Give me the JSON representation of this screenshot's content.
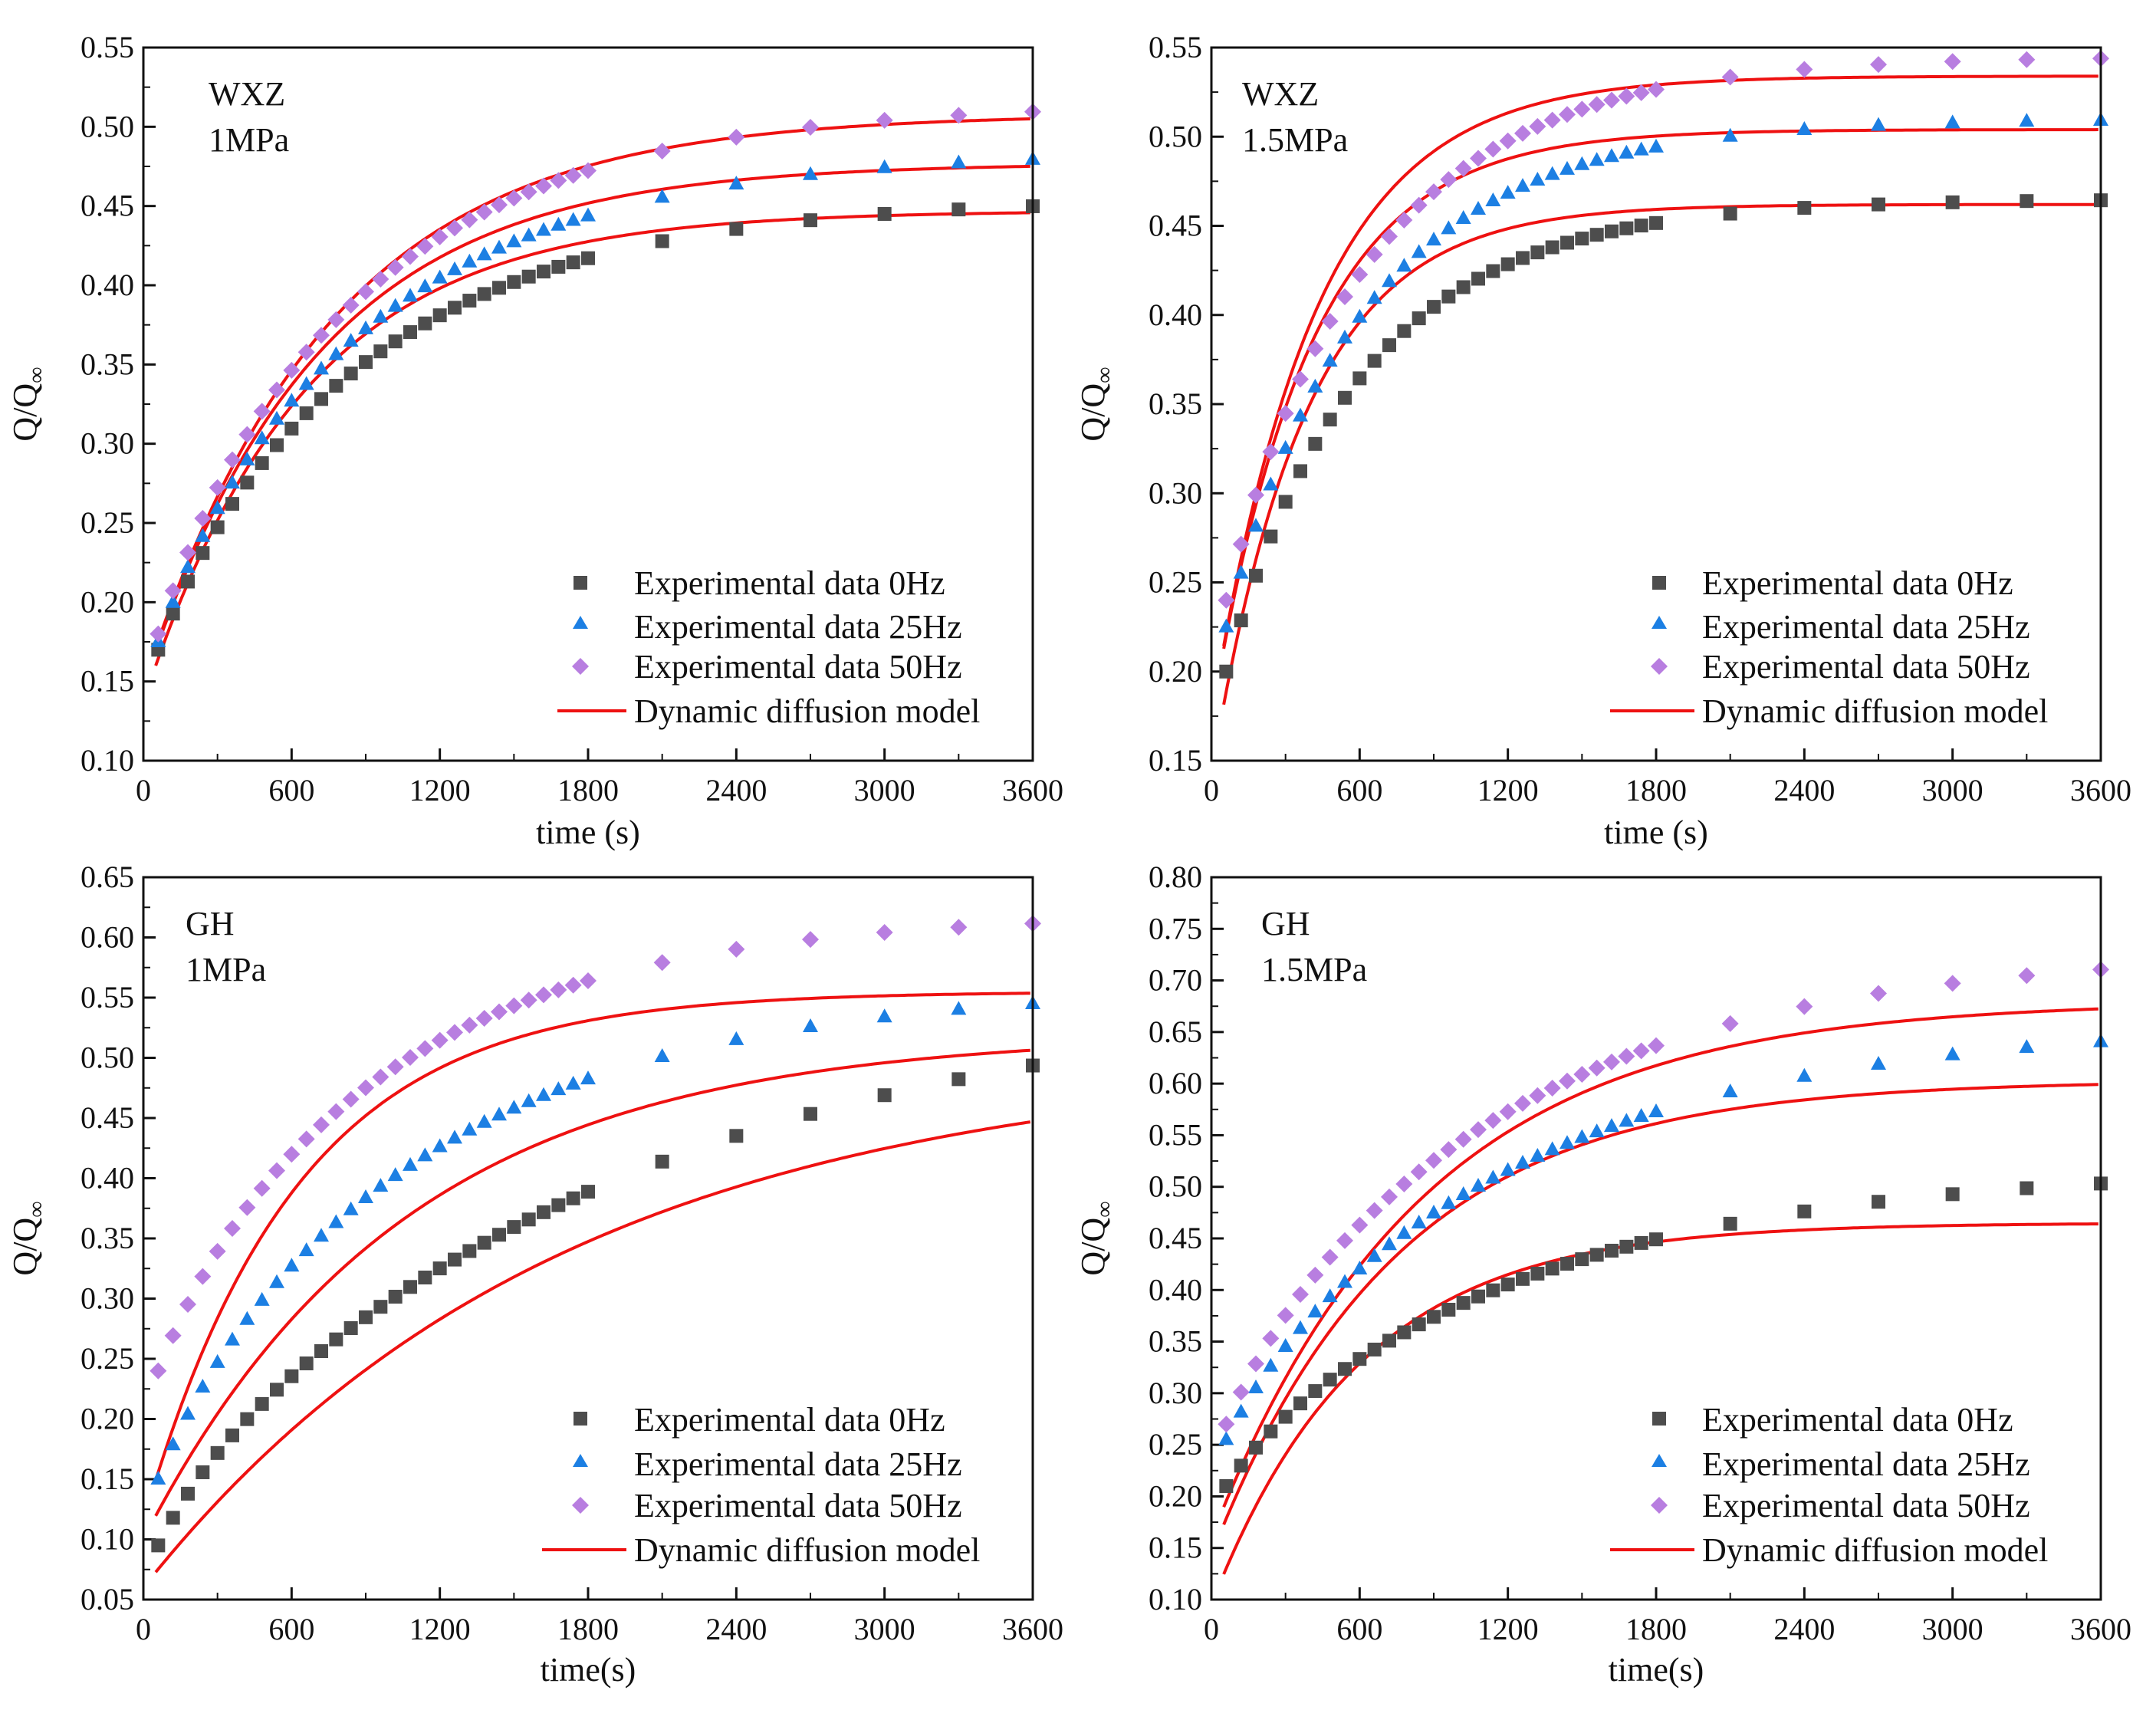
{
  "figure": {
    "panels": 4,
    "colors": {
      "exp_0hz": "#4d4d4d",
      "exp_25hz": "#1c7fe3",
      "exp_50hz": "#b87ee0",
      "model": "#ee1111"
    }
  },
  "chart_data": [
    {
      "type": "scatter",
      "sample": "WXZ",
      "pressure": "1MPa",
      "xlabel": "time (s)",
      "ylabel": "Q/Q∞",
      "xlim": [
        0,
        3600
      ],
      "ylim": [
        0.1,
        0.55
      ],
      "xticks": [
        0,
        600,
        1200,
        1800,
        2400,
        3000,
        3600
      ],
      "xtick_labels": [
        "0",
        "600",
        "1200",
        "1800",
        "2400",
        "3000",
        "3600"
      ],
      "yticks": [
        0.1,
        0.15,
        0.2,
        0.25,
        0.3,
        0.35,
        0.4,
        0.45,
        0.5,
        0.55
      ],
      "ytick_labels": [
        "0.10",
        "0.15",
        "0.20",
        "0.25",
        "0.30",
        "0.35",
        "0.40",
        "0.45",
        "0.50",
        "0.55"
      ],
      "legend": {
        "position": "bottom-right",
        "entries": [
          "Experimental data 0Hz",
          "Experimental data 25Hz",
          "Experimental data 50Hz",
          "Dynamic diffusion model"
        ]
      },
      "series": [
        {
          "name": "Experimental data 0Hz",
          "marker": "square",
          "x0": 60,
          "dx": 60,
          "n": 30,
          "extra_x": [
            2100,
            2400,
            2700,
            3000,
            3300,
            3600
          ],
          "Qmax": 0.455,
          "tau": 900,
          "y0": 0.17
        },
        {
          "name": "Experimental data 25Hz",
          "marker": "triangle",
          "x0": 60,
          "dx": 60,
          "n": 30,
          "extra_x": [
            2100,
            2400,
            2700,
            3000,
            3300,
            3600
          ],
          "Qmax": 0.485,
          "tau": 900,
          "y0": 0.175
        },
        {
          "name": "Experimental data 50Hz",
          "marker": "diamond",
          "x0": 60,
          "dx": 60,
          "n": 30,
          "extra_x": [
            2100,
            2400,
            2700,
            3000,
            3300,
            3600
          ],
          "Qmax": 0.515,
          "tau": 880,
          "y0": 0.18
        }
      ],
      "models": [
        {
          "name": "Dynamic diffusion model 0Hz",
          "A": 0.447,
          "B": 0.31,
          "tau": 650,
          "x_start": 50
        },
        {
          "name": "Dynamic diffusion model 25Hz",
          "A": 0.477,
          "B": 0.33,
          "tau": 700,
          "x_start": 50
        },
        {
          "name": "Dynamic diffusion model 50Hz",
          "A": 0.508,
          "B": 0.36,
          "tau": 750,
          "x_start": 50
        }
      ]
    },
    {
      "type": "scatter",
      "sample": "WXZ",
      "pressure": "1.5MPa",
      "xlabel": "time (s)",
      "ylabel": "Q/Q∞",
      "xlim": [
        0,
        3600
      ],
      "ylim": [
        0.15,
        0.55
      ],
      "xticks": [
        0,
        600,
        1200,
        1800,
        2400,
        3000,
        3600
      ],
      "xtick_labels": [
        "0",
        "600",
        "1200",
        "1800",
        "2400",
        "3000",
        "3600"
      ],
      "yticks": [
        0.15,
        0.2,
        0.25,
        0.3,
        0.35,
        0.4,
        0.45,
        0.5,
        0.55
      ],
      "ytick_labels": [
        "0.15",
        "0.20",
        "0.25",
        "0.30",
        "0.35",
        "0.40",
        "0.45",
        "0.50",
        "0.55"
      ],
      "legend": {
        "position": "bottom-right",
        "entries": [
          "Experimental data 0Hz",
          "Experimental data 25Hz",
          "Experimental data 50Hz",
          "Dynamic diffusion model"
        ]
      },
      "series": [
        {
          "name": "Experimental data 0Hz",
          "marker": "square",
          "x0": 60,
          "dx": 60,
          "n": 30,
          "extra_x": [
            2100,
            2400,
            2700,
            3000,
            3300,
            3600
          ],
          "Qmax": 0.465,
          "tau": 600,
          "y0": 0.2
        },
        {
          "name": "Experimental data 25Hz",
          "marker": "triangle",
          "x0": 60,
          "dx": 60,
          "n": 30,
          "extra_x": [
            2100,
            2400,
            2700,
            3000,
            3300,
            3600
          ],
          "Qmax": 0.51,
          "tau": 620,
          "y0": 0.225
        },
        {
          "name": "Experimental data 50Hz",
          "marker": "diamond",
          "x0": 60,
          "dx": 60,
          "n": 30,
          "extra_x": [
            2100,
            2400,
            2700,
            3000,
            3300,
            3600
          ],
          "Qmax": 0.545,
          "tau": 640,
          "y0": 0.24
        }
      ],
      "models": [
        {
          "name": "Dynamic diffusion model 0Hz",
          "A": 0.462,
          "B": 0.32,
          "tau": 380,
          "x_start": 50
        },
        {
          "name": "Dynamic diffusion model 25Hz",
          "A": 0.504,
          "B": 0.33,
          "tau": 400,
          "x_start": 50
        },
        {
          "name": "Dynamic diffusion model 50Hz",
          "A": 0.534,
          "B": 0.36,
          "tau": 420,
          "x_start": 50
        }
      ]
    },
    {
      "type": "scatter",
      "sample": "GH",
      "pressure": "1MPa",
      "xlabel": "time(s)",
      "ylabel": "Q/Q∞",
      "xlim": [
        0,
        3600
      ],
      "ylim": [
        0.05,
        0.65
      ],
      "xticks": [
        0,
        600,
        1200,
        1800,
        2400,
        3000,
        3600
      ],
      "xtick_labels": [
        "0",
        "600",
        "1200",
        "1800",
        "2400",
        "3000",
        "3600"
      ],
      "yticks": [
        0.05,
        0.1,
        0.15,
        0.2,
        0.25,
        0.3,
        0.35,
        0.4,
        0.45,
        0.5,
        0.55,
        0.6,
        0.65
      ],
      "ytick_labels": [
        "0.05",
        "0.10",
        "0.15",
        "0.20",
        "0.25",
        "0.30",
        "0.35",
        "0.40",
        "0.45",
        "0.50",
        "0.55",
        "0.60",
        "0.65"
      ],
      "legend": {
        "position": "bottom-right",
        "entries": [
          "Experimental data 0Hz",
          "Experimental data 25Hz",
          "Experimental data 50Hz",
          "Dynamic diffusion model"
        ]
      },
      "series": [
        {
          "name": "Experimental data 0Hz",
          "marker": "square",
          "x0": 60,
          "dx": 60,
          "n": 30,
          "extra_x": [
            2100,
            2400,
            2700,
            3000,
            3300,
            3600
          ],
          "Qmax": 0.56,
          "tau": 1900,
          "y0": 0.095
        },
        {
          "name": "Experimental data 25Hz",
          "marker": "triangle",
          "x0": 60,
          "dx": 60,
          "n": 30,
          "extra_x": [
            2100,
            2400,
            2700,
            3000,
            3300,
            3600
          ],
          "Qmax": 0.56,
          "tau": 1100,
          "y0": 0.15
        },
        {
          "name": "Experimental data 50Hz",
          "marker": "diamond",
          "x0": 60,
          "dx": 60,
          "n": 30,
          "extra_x": [
            2100,
            2400,
            2700,
            3000,
            3300,
            3600
          ],
          "Qmax": 0.62,
          "tau": 950,
          "y0": 0.24
        }
      ],
      "models": [
        {
          "name": "Dynamic diffusion model 0Hz",
          "A": 0.5,
          "B": 0.44,
          "tau": 1700,
          "x_start": 50
        },
        {
          "name": "Dynamic diffusion model 25Hz",
          "A": 0.52,
          "B": 0.42,
          "tau": 1050,
          "x_start": 50
        },
        {
          "name": "Dynamic diffusion model 50Hz",
          "A": 0.555,
          "B": 0.44,
          "tau": 620,
          "x_start": 50
        }
      ]
    },
    {
      "type": "scatter",
      "sample": "GH",
      "pressure": "1.5MPa",
      "xlabel": "time(s)",
      "ylabel": "Q/Q∞",
      "xlim": [
        0,
        3600
      ],
      "ylim": [
        0.1,
        0.8
      ],
      "xticks": [
        0,
        600,
        1200,
        1800,
        2400,
        3000,
        3600
      ],
      "xtick_labels": [
        "0",
        "600",
        "1200",
        "1800",
        "2400",
        "3000",
        "3600"
      ],
      "yticks": [
        0.1,
        0.15,
        0.2,
        0.25,
        0.3,
        0.35,
        0.4,
        0.45,
        0.5,
        0.55,
        0.6,
        0.65,
        0.7,
        0.75,
        0.8
      ],
      "ytick_labels": [
        "0.10",
        "0.15",
        "0.20",
        "0.25",
        "0.30",
        "0.35",
        "0.40",
        "0.45",
        "0.50",
        "0.55",
        "0.60",
        "0.65",
        "0.70",
        "0.75",
        "0.80"
      ],
      "legend": {
        "position": "bottom-right",
        "entries": [
          "Experimental data 0Hz",
          "Experimental data 25Hz",
          "Experimental data 50Hz",
          "Dynamic diffusion model"
        ]
      },
      "series": [
        {
          "name": "Experimental data 0Hz",
          "marker": "square",
          "x0": 60,
          "dx": 60,
          "n": 30,
          "extra_x": [
            2100,
            2400,
            2700,
            3000,
            3300,
            3600
          ],
          "Qmax": 0.52,
          "tau": 1250,
          "y0": 0.21
        },
        {
          "name": "Experimental data 25Hz",
          "marker": "triangle",
          "x0": 60,
          "dx": 60,
          "n": 30,
          "extra_x": [
            2100,
            2400,
            2700,
            3000,
            3300,
            3600
          ],
          "Qmax": 0.66,
          "tau": 1200,
          "y0": 0.255
        },
        {
          "name": "Experimental data 50Hz",
          "marker": "diamond",
          "x0": 60,
          "dx": 60,
          "n": 30,
          "extra_x": [
            2100,
            2400,
            2700,
            3000,
            3300,
            3600
          ],
          "Qmax": 0.73,
          "tau": 1150,
          "y0": 0.27
        }
      ],
      "models": [
        {
          "name": "Dynamic diffusion model 0Hz",
          "A": 0.465,
          "B": 0.37,
          "tau": 600,
          "x_start": 50
        },
        {
          "name": "Dynamic diffusion model 25Hz",
          "A": 0.603,
          "B": 0.46,
          "tau": 750,
          "x_start": 50
        },
        {
          "name": "Dynamic diffusion model 50Hz",
          "A": 0.68,
          "B": 0.52,
          "tau": 850,
          "x_start": 50
        }
      ]
    }
  ]
}
